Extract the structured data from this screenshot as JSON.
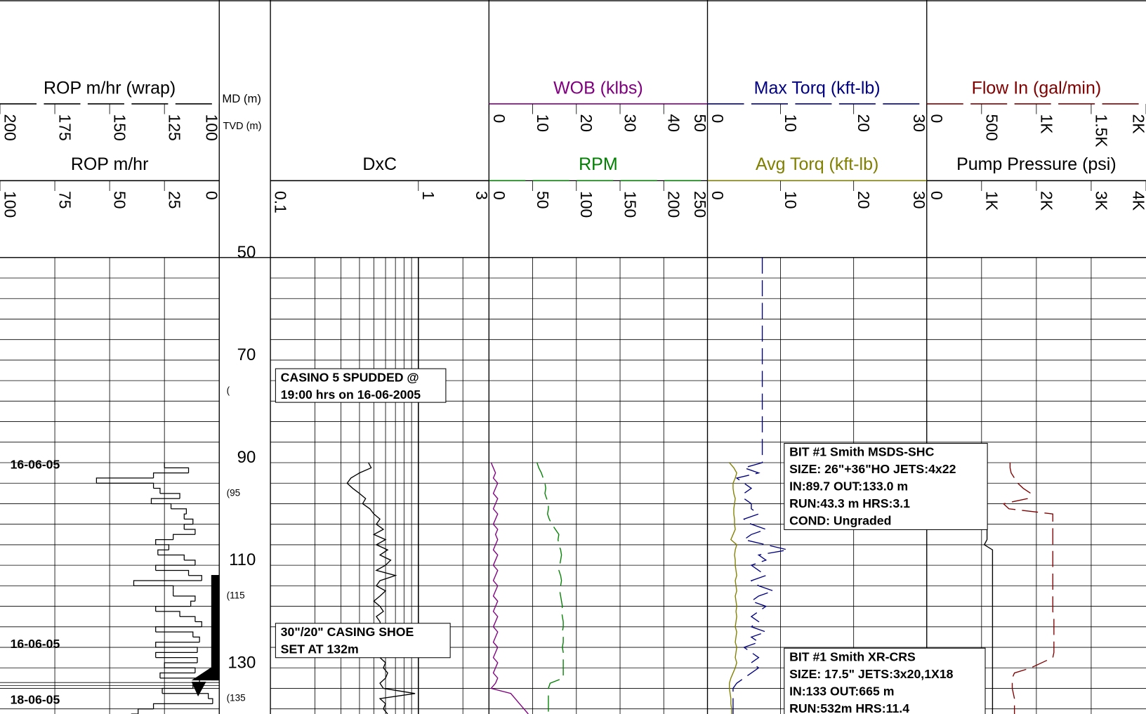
{
  "chart_data": {
    "type": "well-log",
    "depth_track": {
      "md_title": "MD (m)",
      "tvd_title": "TVD (m)",
      "lim": [
        50,
        139
      ],
      "ticks": [
        50,
        70,
        90,
        110,
        130
      ],
      "tvd_labels": [
        {
          "md": 76,
          "label": "("
        },
        {
          "md": 96,
          "label": "(95"
        },
        {
          "md": 116,
          "label": "(115"
        },
        {
          "md": 136,
          "label": "(135"
        }
      ]
    },
    "date_labels": [
      {
        "md": 90.5,
        "label": "16-06-05"
      },
      {
        "md": 125.5,
        "label": "16-06-05"
      },
      {
        "md": 136.4,
        "label": "18-06-05"
      }
    ],
    "depth": [
      50,
      89,
      90,
      91,
      92,
      93,
      94,
      95,
      96,
      97,
      98,
      99,
      100,
      101,
      102,
      103,
      104,
      105,
      106,
      107,
      108,
      109,
      110,
      111,
      112,
      113,
      114,
      115,
      116,
      117,
      118,
      119,
      120,
      121,
      122,
      123,
      124,
      125,
      126,
      127,
      128,
      129,
      130,
      131,
      132,
      133,
      134,
      135,
      136,
      137,
      138,
      139
    ],
    "tracks": [
      {
        "scales": [
          {
            "title": "ROP m/hr (wrap)",
            "color": "#000000",
            "dash": true,
            "lim": [
              200,
              100
            ],
            "ticks": [
              200,
              175,
              150,
              125,
              100
            ]
          },
          {
            "title": "ROP m/hr",
            "color": "#000000",
            "dash": false,
            "step": true,
            "lim": [
              100,
              0
            ],
            "ticks": [
              100,
              75,
              50,
              25,
              0
            ],
            "values": [
              null,
              null,
              25,
              14,
              30,
              56,
              30,
              27,
              18,
              31,
              22,
              15,
              16,
              12,
              16,
              11,
              21,
              29,
              23,
              28,
              16,
              11,
              29,
              14,
              8,
              39,
              21,
              21,
              11,
              13,
              29,
              18,
              11,
              8,
              29,
              12,
              9,
              29,
              10,
              29,
              10,
              25,
              11,
              27,
              9,
              12,
              26,
              5,
              3,
              30,
              37,
              40
            ]
          }
        ]
      },
      {
        "scales": [
          {
            "title": "DxC",
            "color": "#000000",
            "dash": false,
            "log": true,
            "lim": [
              0.1,
              3
            ],
            "ticks": [
              0.1,
              1,
              3
            ],
            "values": [
              null,
              null,
              0.46,
              0.48,
              0.4,
              0.35,
              0.33,
              0.36,
              0.4,
              0.44,
              0.42,
              0.47,
              0.5,
              0.55,
              0.52,
              0.58,
              0.5,
              0.6,
              0.52,
              0.62,
              0.55,
              0.65,
              0.6,
              0.52,
              0.7,
              0.55,
              0.52,
              0.6,
              0.55,
              0.5,
              0.55,
              0.58,
              0.52,
              0.55,
              0.56,
              0.58,
              0.55,
              0.5,
              0.58,
              0.6,
              0.55,
              0.6,
              0.58,
              0.62,
              0.6,
              0.55,
              0.58,
              0.95,
              0.55,
              0.6,
              0.58,
              0.62
            ]
          }
        ]
      },
      {
        "scales": [
          {
            "title": "WOB (klbs)",
            "color": "#800080",
            "dash": false,
            "lim": [
              0,
              50
            ],
            "ticks": [
              0,
              10,
              20,
              30,
              40,
              50
            ],
            "values": [
              null,
              null,
              0.5,
              1,
              1.5,
              1,
              2,
              1.5,
              1,
              2,
              1.5,
              1,
              2,
              1.5,
              1,
              2,
              1.5,
              2,
              1.5,
              1,
              2,
              1.5,
              1,
              2,
              1.5,
              1,
              2,
              1.5,
              1,
              2,
              1.5,
              1,
              2,
              1.5,
              1,
              2,
              1.5,
              1,
              2,
              1.5,
              1,
              2,
              1.5,
              1,
              2,
              1.5,
              0.5,
              5,
              6,
              7,
              8,
              9
            ]
          },
          {
            "title": "RPM",
            "color": "#008000",
            "dash": true,
            "lim": [
              0,
              250
            ],
            "ticks": [
              0,
              50,
              100,
              150,
              200,
              250
            ],
            "values": [
              null,
              null,
              55,
              57,
              60,
              62,
              64,
              65,
              64,
              66,
              68,
              68,
              67,
              69,
              72,
              76,
              80,
              79,
              80,
              82,
              83,
              82,
              81,
              80,
              82,
              83,
              82,
              81,
              82,
              83,
              84,
              83,
              84,
              85,
              85,
              84,
              85,
              85,
              84,
              85,
              85,
              85,
              85,
              85,
              85,
              70,
              68,
              68,
              68,
              68,
              68,
              68
            ]
          }
        ]
      },
      {
        "scales": [
          {
            "title": "Max Torq (kft-lb)",
            "color": "#000080",
            "dash": true,
            "lim": [
              0,
              30
            ],
            "ticks": [
              0,
              10,
              20,
              30
            ],
            "values": [
              7.5,
              7.5,
              7.5,
              5,
              7,
              4,
              5,
              6,
              5,
              5,
              6,
              6,
              7,
              5,
              6,
              8,
              6,
              5,
              8,
              11,
              7,
              8,
              6,
              7,
              8,
              6,
              7,
              9,
              7,
              6,
              8,
              7,
              6,
              7,
              6,
              8,
              6,
              7,
              5,
              6,
              7,
              6,
              7,
              6,
              5,
              4,
              3.5,
              3.5,
              3.5,
              3.5,
              3.5,
              3.5
            ]
          },
          {
            "title": "Avg Torq (kft-lb)",
            "color": "#808000",
            "dash": false,
            "lim": [
              0,
              30
            ],
            "ticks": [
              0,
              10,
              20,
              30
            ],
            "values": [
              null,
              null,
              3,
              3.6,
              4,
              3.8,
              3.5,
              3.5,
              3.6,
              3.8,
              3.7,
              3.6,
              3.6,
              3.7,
              3.7,
              3.8,
              3.5,
              3.2,
              4,
              3.8,
              3.7,
              3.8,
              3.8,
              3.9,
              4,
              3.8,
              3.9,
              4,
              3.8,
              3.9,
              4,
              3.9,
              4,
              3.9,
              3.8,
              4,
              3.9,
              3.8,
              4,
              3.9,
              3.8,
              4,
              3.8,
              3.5,
              3.2,
              3,
              3,
              3.1,
              3.2,
              3.2,
              3.3,
              3.3
            ]
          }
        ]
      },
      {
        "scales": [
          {
            "title": "Flow In (gal/min)",
            "color": "#800000",
            "dash": true,
            "lim": [
              0,
              2000
            ],
            "ticks": [
              0,
              500,
              {
                "value": 1000,
                "label": "1K"
              },
              {
                "value": 1500,
                "label": "1.5K"
              },
              {
                "value": 2000,
                "label": "2K"
              }
            ],
            "values": [
              null,
              null,
              760,
              760,
              770,
              800,
              830,
              880,
              950,
              920,
              700,
              750,
              1150,
              1150,
              1150,
              1150,
              1150,
              1150,
              1150,
              1150,
              1150,
              1150,
              1150,
              1150,
              1150,
              1150,
              1150,
              1150,
              1150,
              1150,
              1150,
              1150,
              1160,
              1160,
              1160,
              1160,
              1160,
              1160,
              1160,
              1160,
              1150,
              1050,
              950,
              800,
              780,
              780,
              780,
              790,
              800,
              800,
              800,
              800
            ]
          },
          {
            "title": "Pump Pressure (psi)",
            "color": "#000000",
            "dash": false,
            "lim": [
              0,
              4000
            ],
            "ticks": [
              0,
              {
                "value": 1000,
                "label": "1K"
              },
              {
                "value": 2000,
                "label": "2K"
              },
              {
                "value": 3000,
                "label": "3K"
              },
              {
                "value": 4000,
                "label": "4K"
              }
            ],
            "values": [
              null,
              null,
              null,
              null,
              null,
              null,
              null,
              null,
              null,
              null,
              null,
              null,
              500,
              1000,
              1100,
              1100,
              1100,
              1100,
              1050,
              1200,
              1200,
              1200,
              1200,
              1200,
              1200,
              1200,
              1200,
              1200,
              1200,
              1200,
              1200,
              1200,
              1200,
              1200,
              1200,
              1200,
              1200,
              1200,
              1200,
              1200,
              1200,
              1200,
              1200,
              1200,
              1200,
              1200,
              1200,
              1200,
              1200,
              1200,
              1200,
              1200
            ]
          }
        ]
      }
    ],
    "annotations": [
      {
        "lines": [
          "CASINO 5 SPUDDED @",
          "19:00 hrs on 16-06-2005"
        ]
      },
      {
        "lines": [
          "30\"/20\" CASING SHOE",
          "SET AT 132m"
        ]
      },
      {
        "lines": [
          "BIT #1 Smith MSDS-SHC",
          "SIZE: 26\"+36\"HO JETS:4x22",
          "IN:89.7    OUT:133.0 m",
          "RUN:43.3 m  HRS:3.1",
          "COND: Ungraded"
        ]
      },
      {
        "lines": [
          "BIT #1 Smith XR-CRS",
          "SIZE: 17.5\" JETS:3x20,1X18",
          "IN:133     OUT:665 m",
          "RUN:532m  HRS:11.4"
        ]
      }
    ]
  }
}
